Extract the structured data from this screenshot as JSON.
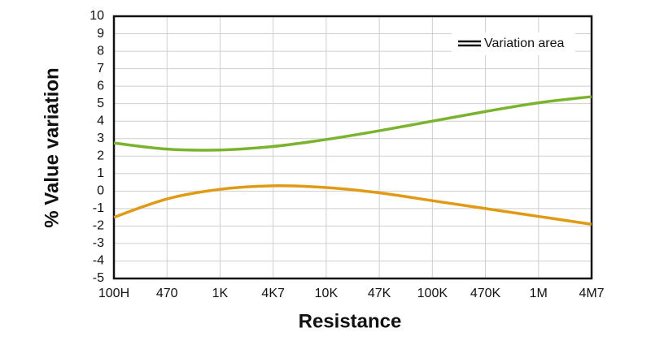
{
  "chart_data": {
    "type": "line",
    "xlabel": "Resistance",
    "ylabel": "% Value variation",
    "categories": [
      "100H",
      "470",
      "1K",
      "4K7",
      "10K",
      "47K",
      "100K",
      "470K",
      "1M",
      "4M7"
    ],
    "series": [
      {
        "color": "#7ab32e",
        "values": [
          2.75,
          2.4,
          2.35,
          2.55,
          2.95,
          3.45,
          4.0,
          4.55,
          5.05,
          5.4
        ]
      },
      {
        "color": "#e09a14",
        "values": [
          -1.5,
          -0.45,
          0.1,
          0.3,
          0.2,
          -0.1,
          -0.55,
          -1.0,
          -1.45,
          -1.9
        ]
      }
    ],
    "legend_label": "Variation area",
    "legend": "upper right",
    "ylim": [
      -5,
      10
    ],
    "yticks": [
      -5,
      -4,
      -3,
      -2,
      -1,
      0,
      1,
      2,
      3,
      4,
      5,
      6,
      7,
      8,
      9,
      10
    ],
    "grid": true
  }
}
